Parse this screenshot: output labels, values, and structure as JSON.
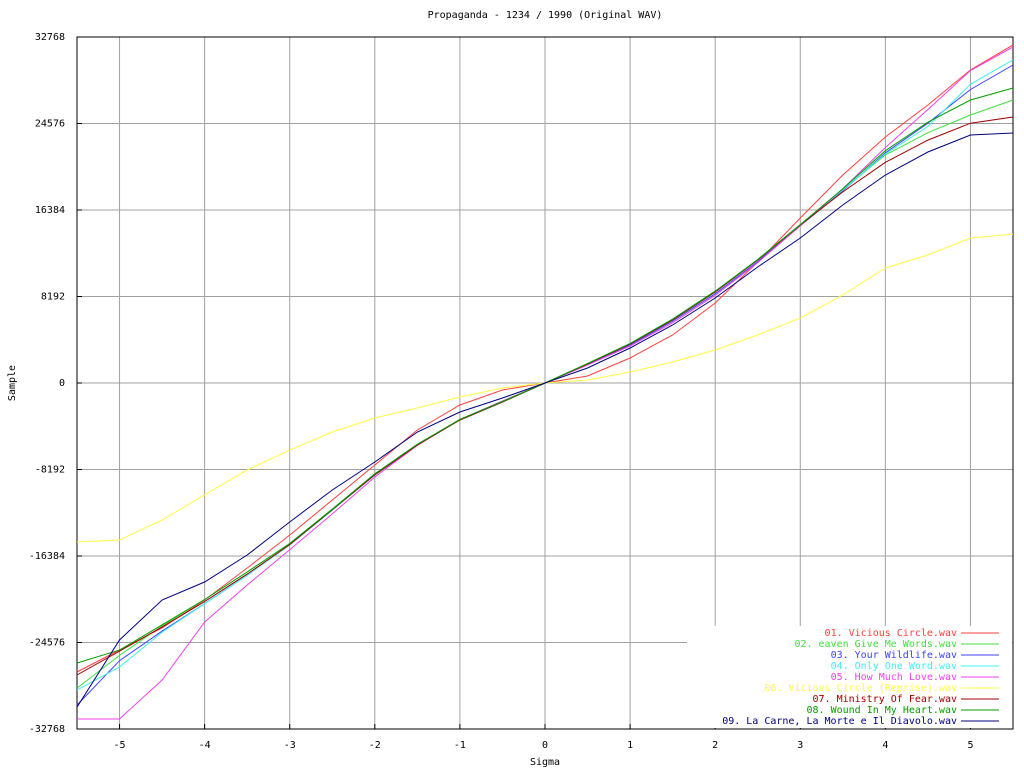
{
  "chart_data": {
    "type": "line",
    "title": "Propaganda - 1234 / 1990 (Original WAV)",
    "x_label": "Sigma",
    "y_label": "Sample",
    "x": [
      -5.5,
      -5,
      -4.5,
      -4,
      -3.5,
      -3,
      -2.5,
      -2,
      -1.5,
      -1,
      -0.5,
      0,
      0.5,
      1,
      1.5,
      2,
      2.5,
      3,
      3.5,
      4,
      4.5,
      5,
      5.5
    ],
    "xlim": [
      -5.5,
      5.5
    ],
    "xticks": [
      -5,
      -4,
      -3,
      -2,
      -1,
      0,
      1,
      2,
      3,
      4,
      5
    ],
    "ylim": [
      -32768,
      32768
    ],
    "yticks": [
      -32768,
      -24576,
      -16384,
      -8192,
      0,
      8192,
      16384,
      24576,
      32768
    ],
    "grid": true,
    "legend": "lower right",
    "series": [
      {
        "name": "01. Vicious Circle.wav",
        "color": "#ff4040",
        "values": [
          -27370,
          -25290,
          -23200,
          -20550,
          -17520,
          -14400,
          -11080,
          -7770,
          -4450,
          -2080,
          -660,
          0,
          660,
          2370,
          4550,
          7580,
          11460,
          15630,
          19700,
          23300,
          26330,
          29650,
          32020
        ]
      },
      {
        "name": "02. eaven Give Me Words.wav",
        "color": "#40e040",
        "values": [
          -28890,
          -25800,
          -23000,
          -20500,
          -17900,
          -15200,
          -11950,
          -8650,
          -5850,
          -3500,
          -1800,
          0,
          1800,
          3700,
          6000,
          8650,
          11700,
          15000,
          18300,
          21600,
          23700,
          25380,
          26800
        ]
      },
      {
        "name": "03. Your Wildlife.wav",
        "color": "#4040ff",
        "values": [
          -30500,
          -26300,
          -23500,
          -20900,
          -18200,
          -15300,
          -12000,
          -8700,
          -5850,
          -3450,
          -1750,
          0,
          1750,
          3600,
          5850,
          8450,
          11500,
          14900,
          18200,
          21800,
          24600,
          27800,
          30120
        ]
      },
      {
        "name": "04. Only One Word.wav",
        "color": "#40f0f0",
        "values": [
          -29080,
          -26900,
          -23600,
          -20900,
          -18200,
          -15350,
          -12050,
          -8720,
          -5880,
          -3500,
          -1800,
          0,
          1800,
          3690,
          5970,
          8620,
          11650,
          14960,
          18280,
          21700,
          24300,
          28300,
          30600
        ]
      },
      {
        "name": "05. How Much Love.wav",
        "color": "#f040f0",
        "values": [
          -31820,
          -31820,
          -28130,
          -22640,
          -19130,
          -15800,
          -12400,
          -8900,
          -5900,
          -3450,
          -1700,
          0,
          1700,
          3500,
          5700,
          8300,
          11400,
          14900,
          18400,
          22300,
          25900,
          29600,
          31820
        ]
      },
      {
        "name": "06. Vicious Circle (Reprise).wav",
        "color": "#ffff40",
        "values": [
          -15060,
          -14870,
          -12970,
          -10600,
          -8240,
          -6350,
          -4640,
          -3315,
          -2370,
          -1330,
          -470,
          0,
          280,
          1040,
          1990,
          3125,
          4550,
          6150,
          8330,
          10900,
          12120,
          13730,
          14100
        ]
      },
      {
        "name": "07. Ministry Of Fear.wav",
        "color": "#a00000",
        "values": [
          -27650,
          -25400,
          -23100,
          -20700,
          -18100,
          -15300,
          -12000,
          -8700,
          -5870,
          -3500,
          -1800,
          0,
          1800,
          3690,
          5970,
          8620,
          11650,
          14960,
          18100,
          20900,
          23000,
          24600,
          25190
        ]
      },
      {
        "name": "08. Wound In My Heart.wav",
        "color": "#00a000",
        "values": [
          -26520,
          -25300,
          -22900,
          -20500,
          -17900,
          -15200,
          -11950,
          -8600,
          -5800,
          -3450,
          -1750,
          0,
          1850,
          3750,
          6050,
          8700,
          11700,
          15000,
          18400,
          22000,
          24700,
          26800,
          27940
        ]
      },
      {
        "name": "09. La Carne, La Morte e Il Diavolo.wav",
        "color": "#000080",
        "values": [
          -30690,
          -24340,
          -20550,
          -18850,
          -16290,
          -13160,
          -10130,
          -7480,
          -4640,
          -2750,
          -1420,
          0,
          1420,
          3310,
          5490,
          8050,
          10990,
          13730,
          16860,
          19700,
          21880,
          23490,
          23680
        ]
      }
    ]
  }
}
